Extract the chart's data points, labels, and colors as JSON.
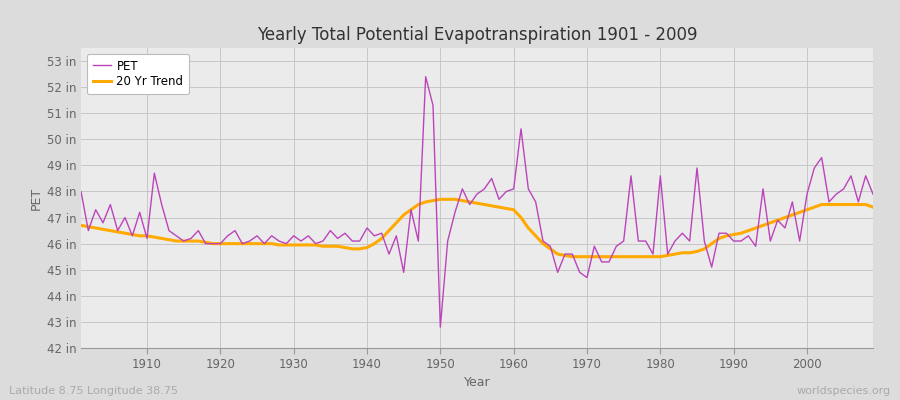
{
  "title": "Yearly Total Potential Evapotranspiration 1901 - 2009",
  "xlabel": "Year",
  "ylabel": "PET",
  "subtitle": "Latitude 8.75 Longitude 38.75",
  "watermark": "worldspecies.org",
  "pet_color": "#bb44bb",
  "trend_color": "#ffaa00",
  "bg_color": "#dcdcdc",
  "plot_bg": "#ebebeb",
  "ylim": [
    42,
    53.5
  ],
  "yticks": [
    42,
    43,
    44,
    45,
    46,
    47,
    48,
    49,
    50,
    51,
    52,
    53
  ],
  "xlim": [
    1901,
    2009
  ],
  "xticks": [
    1910,
    1920,
    1930,
    1940,
    1950,
    1960,
    1970,
    1980,
    1990,
    2000
  ],
  "years": [
    1901,
    1902,
    1903,
    1904,
    1905,
    1906,
    1907,
    1908,
    1909,
    1910,
    1911,
    1912,
    1913,
    1914,
    1915,
    1916,
    1917,
    1918,
    1919,
    1920,
    1921,
    1922,
    1923,
    1924,
    1925,
    1926,
    1927,
    1928,
    1929,
    1930,
    1931,
    1932,
    1933,
    1934,
    1935,
    1936,
    1937,
    1938,
    1939,
    1940,
    1941,
    1942,
    1943,
    1944,
    1945,
    1946,
    1947,
    1948,
    1949,
    1950,
    1951,
    1952,
    1953,
    1954,
    1955,
    1956,
    1957,
    1958,
    1959,
    1960,
    1961,
    1962,
    1963,
    1964,
    1965,
    1966,
    1967,
    1968,
    1969,
    1970,
    1971,
    1972,
    1973,
    1974,
    1975,
    1976,
    1977,
    1978,
    1979,
    1980,
    1981,
    1982,
    1983,
    1984,
    1985,
    1986,
    1987,
    1988,
    1989,
    1990,
    1991,
    1992,
    1993,
    1994,
    1995,
    1996,
    1997,
    1998,
    1999,
    2000,
    2001,
    2002,
    2003,
    2004,
    2005,
    2006,
    2007,
    2008,
    2009
  ],
  "pet": [
    48.0,
    46.5,
    47.3,
    46.8,
    47.5,
    46.5,
    47.0,
    46.3,
    47.2,
    46.2,
    48.7,
    47.5,
    46.5,
    46.3,
    46.1,
    46.2,
    46.5,
    46.0,
    46.0,
    46.0,
    46.3,
    46.5,
    46.0,
    46.1,
    46.3,
    46.0,
    46.3,
    46.1,
    46.0,
    46.3,
    46.1,
    46.3,
    46.0,
    46.1,
    46.5,
    46.2,
    46.4,
    46.1,
    46.1,
    46.6,
    46.3,
    46.4,
    45.6,
    46.3,
    44.9,
    47.3,
    46.1,
    52.4,
    51.3,
    42.8,
    46.1,
    47.2,
    48.1,
    47.5,
    47.9,
    48.1,
    48.5,
    47.7,
    48.0,
    48.1,
    50.4,
    48.1,
    47.6,
    46.1,
    45.9,
    44.9,
    45.6,
    45.6,
    44.9,
    44.7,
    45.9,
    45.3,
    45.3,
    45.9,
    46.1,
    48.6,
    46.1,
    46.1,
    45.6,
    48.6,
    45.6,
    46.1,
    46.4,
    46.1,
    48.9,
    46.1,
    45.1,
    46.4,
    46.4,
    46.1,
    46.1,
    46.3,
    45.9,
    48.1,
    46.1,
    46.9,
    46.6,
    47.6,
    46.1,
    47.9,
    48.9,
    49.3,
    47.6,
    47.9,
    48.1,
    48.6,
    47.6,
    48.6,
    47.9
  ],
  "trend": [
    46.7,
    46.65,
    46.6,
    46.55,
    46.5,
    46.45,
    46.4,
    46.35,
    46.3,
    46.3,
    46.25,
    46.2,
    46.15,
    46.1,
    46.1,
    46.1,
    46.1,
    46.05,
    46.0,
    46.0,
    46.0,
    46.0,
    46.0,
    46.0,
    46.0,
    46.0,
    46.0,
    45.95,
    45.95,
    45.95,
    45.95,
    45.95,
    45.95,
    45.9,
    45.9,
    45.9,
    45.85,
    45.8,
    45.8,
    45.85,
    46.0,
    46.2,
    46.5,
    46.8,
    47.1,
    47.3,
    47.5,
    47.6,
    47.65,
    47.7,
    47.7,
    47.7,
    47.65,
    47.6,
    47.55,
    47.5,
    47.45,
    47.4,
    47.35,
    47.3,
    47.0,
    46.6,
    46.3,
    46.0,
    45.8,
    45.6,
    45.55,
    45.5,
    45.5,
    45.5,
    45.5,
    45.5,
    45.5,
    45.5,
    45.5,
    45.5,
    45.5,
    45.5,
    45.5,
    45.5,
    45.55,
    45.6,
    45.65,
    45.65,
    45.7,
    45.8,
    46.0,
    46.2,
    46.3,
    46.35,
    46.4,
    46.5,
    46.6,
    46.7,
    46.8,
    46.9,
    47.0,
    47.1,
    47.2,
    47.3,
    47.4,
    47.5,
    47.5,
    47.5,
    47.5,
    47.5,
    47.5,
    47.5,
    47.4
  ]
}
